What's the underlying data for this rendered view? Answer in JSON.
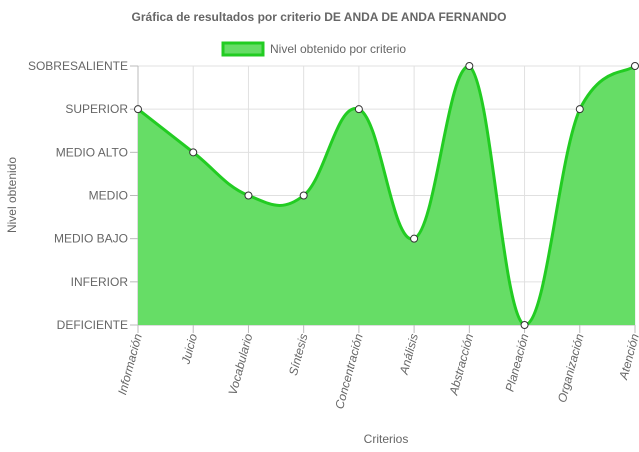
{
  "chart_data": {
    "type": "area",
    "title": "Gráfica de resultados por criterio DE ANDA DE ANDA FERNANDO",
    "xlabel": "Criterios",
    "ylabel": "Nivel obtenido",
    "legend_position": "top",
    "grid": true,
    "y_levels": [
      "DEFICIENTE",
      "INFERIOR",
      "MEDIO BAJO",
      "MEDIO",
      "MEDIO ALTO",
      "SUPERIOR",
      "SOBRESALIENTE"
    ],
    "ylim": [
      0,
      6
    ],
    "categories": [
      "Información",
      "Juicio",
      "Vocabulario",
      "Síntesis",
      "Concentración",
      "Análisis",
      "Abstracción",
      "Planeación",
      "Organización",
      "Atención"
    ],
    "series": [
      {
        "name": "Nivel obtenido por criterio",
        "values": [
          5,
          4,
          3,
          3,
          5,
          2,
          6,
          0,
          5,
          6
        ]
      }
    ],
    "colors": {
      "fill": "#66dd66",
      "line": "#22cc22",
      "point_fill": "#ffffff",
      "point_stroke": "#333333",
      "grid": "#e0e0e0",
      "axis": "#bbbbbb",
      "text": "#666666"
    }
  }
}
